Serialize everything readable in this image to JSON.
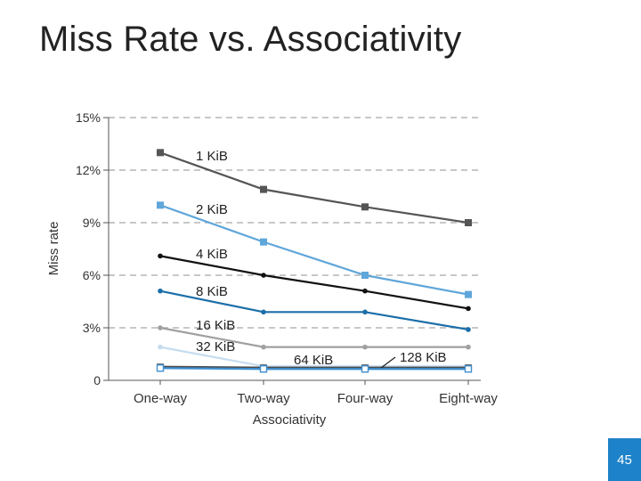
{
  "slide": {
    "title": "Miss Rate vs. Associativity",
    "page_number": "45"
  },
  "chart_data": {
    "type": "line",
    "title": "",
    "xlabel": "Associativity",
    "ylabel": "Miss rate",
    "categories": [
      "One-way",
      "Two-way",
      "Four-way",
      "Eight-way"
    ],
    "ylim": [
      0,
      15
    ],
    "yticks": [
      {
        "value": 0,
        "label": "0"
      },
      {
        "value": 3,
        "label": "3%"
      },
      {
        "value": 6,
        "label": "6%"
      },
      {
        "value": 9,
        "label": "9%"
      },
      {
        "value": 12,
        "label": "12%"
      },
      {
        "value": 15,
        "label": "15%"
      }
    ],
    "grid": "horizontal-dashed",
    "series": [
      {
        "name": "1 KiB",
        "values": [
          13.0,
          10.9,
          9.9,
          9.0
        ],
        "color": "#555555",
        "marker": "square"
      },
      {
        "name": "2 KiB",
        "values": [
          10.0,
          7.9,
          6.0,
          4.9
        ],
        "color": "#5fa6da",
        "marker": "square"
      },
      {
        "name": "4 KiB",
        "values": [
          7.1,
          6.0,
          5.1,
          4.1
        ],
        "color": "#111111",
        "marker": "dot"
      },
      {
        "name": "8 KiB",
        "values": [
          5.1,
          3.9,
          3.9,
          2.9
        ],
        "color": "#1b6ea8",
        "marker": "dot"
      },
      {
        "name": "16 KiB",
        "values": [
          3.0,
          1.9,
          1.9,
          1.9
        ],
        "color": "#a0a0a0",
        "marker": "dot"
      },
      {
        "name": "32 KiB",
        "values": [
          1.9,
          0.8,
          0.8,
          0.8
        ],
        "color": "#c6dcef",
        "marker": "dot"
      },
      {
        "name": "64 KiB",
        "values": [
          0.75,
          0.7,
          0.7,
          0.7
        ],
        "color": "#4a4a4a",
        "marker": "square"
      },
      {
        "name": "128 KiB",
        "values": [
          0.7,
          0.65,
          0.65,
          0.65
        ],
        "color": "#3d8fd0",
        "marker": "open-square"
      }
    ]
  }
}
